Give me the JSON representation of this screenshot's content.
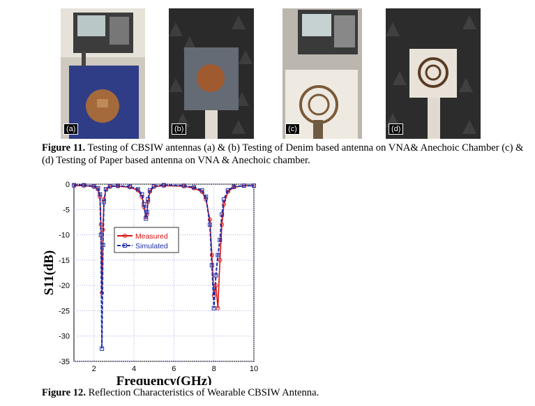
{
  "figure11": {
    "photos": [
      {
        "label": "(a)",
        "description_icon": "photo-denim-antenna-vna"
      },
      {
        "label": "(b)",
        "description_icon": "photo-denim-antenna-anechoic"
      },
      {
        "label": "(c)",
        "description_icon": "photo-paper-antenna-vna"
      },
      {
        "label": "(d)",
        "description_icon": "photo-paper-antenna-anechoic"
      }
    ],
    "caption_bold": "Figure 11.",
    "caption_text": " Testing of CBSIW antennas (a) & (b) Testing of Denim based antenna on VNA& Anechoic Chamber (c) & (d) Testing of Paper based antenna on VNA & Anechoic chamber."
  },
  "figure12": {
    "caption_bold": "Figure 12.",
    "caption_text": " Reflection Characteristics of Wearable CBSIW Antenna."
  },
  "chart_data": {
    "type": "line",
    "xlabel": "Frequency(GHz)",
    "ylabel": "S11(dB)",
    "xlim": [
      1,
      10
    ],
    "ylim": [
      -35,
      0
    ],
    "xticks": [
      2,
      4,
      6,
      8,
      10
    ],
    "yticks": [
      0,
      -5,
      -10,
      -15,
      -20,
      -25,
      -30,
      -35
    ],
    "grid": true,
    "legend_position": "center-left",
    "series": [
      {
        "name": "Measured",
        "color": "#e01010",
        "marker": "circle",
        "x": [
          1.0,
          1.5,
          2.0,
          2.2,
          2.3,
          2.35,
          2.4,
          2.45,
          2.5,
          2.6,
          2.8,
          3.2,
          3.8,
          4.2,
          4.4,
          4.5,
          4.6,
          4.65,
          4.7,
          4.8,
          5.0,
          5.5,
          6.5,
          7.0,
          7.4,
          7.6,
          7.8,
          7.9,
          8.0,
          8.1,
          8.2,
          8.3,
          8.4,
          8.5,
          8.7,
          9.0,
          9.5,
          10.0
        ],
        "y": [
          -0.3,
          -0.3,
          -0.5,
          -1.0,
          -2.5,
          -8.0,
          -21.5,
          -9.0,
          -3.0,
          -1.0,
          -0.5,
          -0.4,
          -0.6,
          -1.2,
          -2.5,
          -4.5,
          -6.5,
          -6.0,
          -3.5,
          -1.5,
          -0.5,
          -0.3,
          -0.4,
          -0.8,
          -1.5,
          -3.0,
          -7.0,
          -14.0,
          -22.0,
          -20.0,
          -24.5,
          -15.0,
          -8.0,
          -4.0,
          -1.5,
          -0.6,
          -0.3,
          -0.3
        ]
      },
      {
        "name": "Simulated",
        "color": "#1c2ea8",
        "marker": "square",
        "x": [
          1.0,
          1.5,
          2.0,
          2.2,
          2.3,
          2.35,
          2.4,
          2.45,
          2.5,
          2.6,
          2.8,
          3.2,
          3.8,
          4.2,
          4.4,
          4.5,
          4.6,
          4.65,
          4.7,
          4.8,
          5.0,
          5.5,
          6.5,
          7.0,
          7.4,
          7.6,
          7.8,
          7.9,
          8.0,
          8.1,
          8.2,
          8.3,
          8.4,
          8.5,
          8.7,
          9.0,
          9.5,
          10.0
        ],
        "y": [
          -0.2,
          -0.2,
          -0.4,
          -0.8,
          -2.0,
          -10.0,
          -32.5,
          -12.0,
          -3.5,
          -1.0,
          -0.4,
          -0.3,
          -0.5,
          -1.0,
          -2.0,
          -4.0,
          -6.8,
          -5.5,
          -3.0,
          -1.2,
          -0.4,
          -0.2,
          -0.3,
          -0.6,
          -1.2,
          -2.5,
          -8.0,
          -16.0,
          -24.5,
          -18.0,
          -14.0,
          -11.0,
          -6.0,
          -3.0,
          -1.2,
          -0.5,
          -0.3,
          -0.3
        ]
      }
    ]
  },
  "colors": {
    "measured": "#e01010",
    "simulated": "#1c2ea8",
    "grid": "#aaaaee"
  }
}
